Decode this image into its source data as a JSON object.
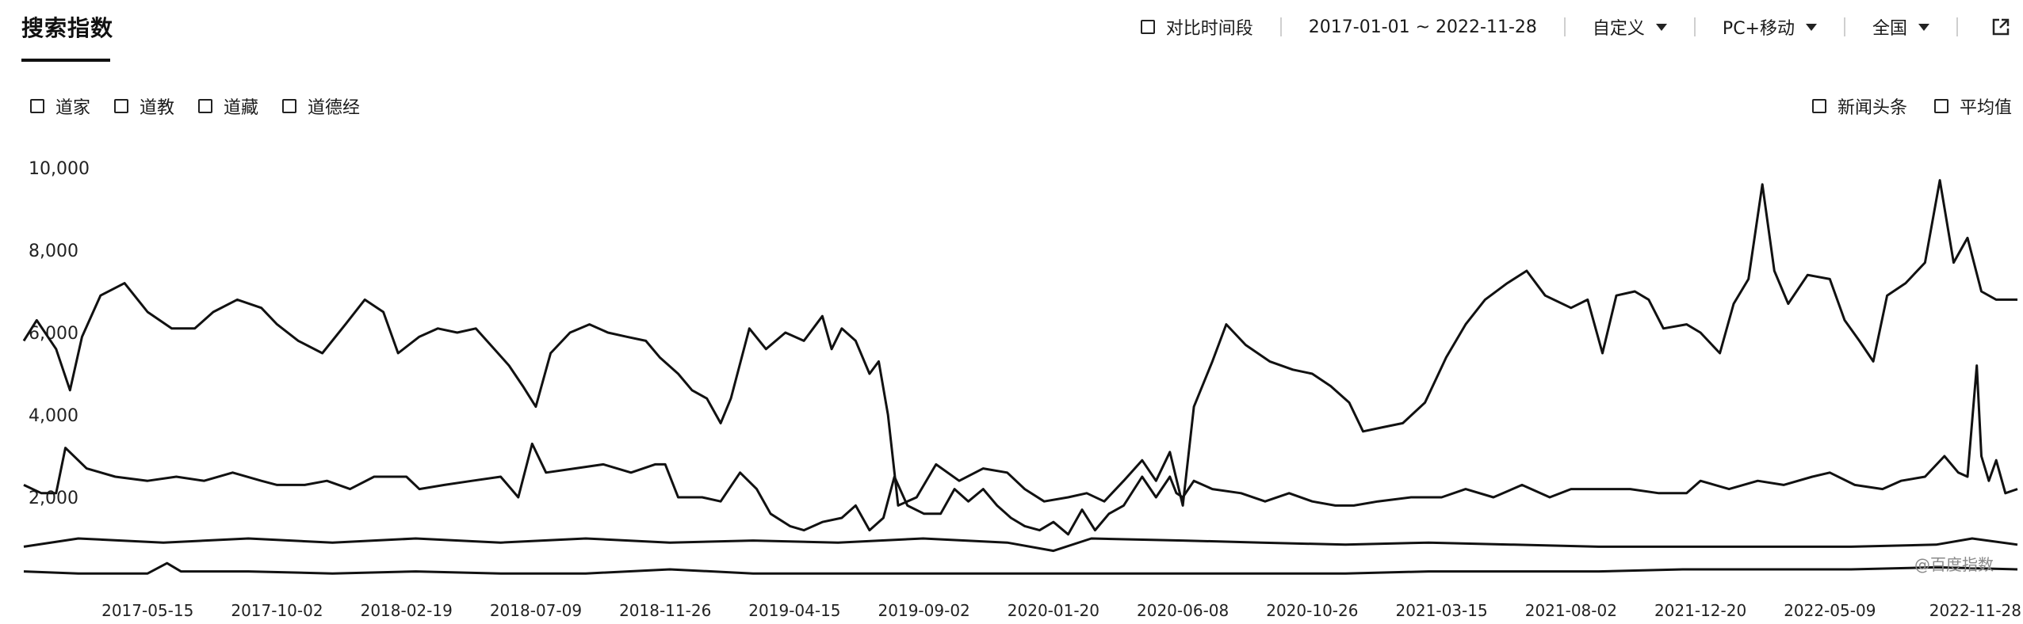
{
  "header": {
    "title": "搜索指数",
    "compare_label": "对比时间段",
    "date_range": "2017-01-01 ~ 2022-11-28",
    "custom_label": "自定义",
    "device_label": "PC+移动",
    "region_label": "全国"
  },
  "legend": {
    "keywords": [
      "道家",
      "道教",
      "道藏",
      "道德经"
    ],
    "news_label": "新闻头条",
    "avg_label": "平均值"
  },
  "watermark": "@百度指数",
  "colors": {
    "line": "#111111",
    "text": "#1a1a1a",
    "separator": "#cfcfcf"
  },
  "icons": {
    "checkbox": "checkbox-icon",
    "dropdown": "chevron-down-icon",
    "export": "export-icon"
  },
  "chart_data": {
    "type": "line",
    "ylim": [
      0,
      10000
    ],
    "yticks": [
      "10,000",
      "8,000",
      "6,000",
      "4,000",
      "2,000"
    ],
    "xlim": [
      "2017-01-01",
      "2022-11-28"
    ],
    "xticks": [
      "2017-05-15",
      "2017-10-02",
      "2018-02-19",
      "2018-07-09",
      "2018-11-26",
      "2019-04-15",
      "2019-09-02",
      "2020-01-20",
      "2020-06-08",
      "2020-10-26",
      "2021-03-15",
      "2021-08-02",
      "2021-12-20",
      "2022-05-09",
      "2022-11-28"
    ],
    "series": [
      {
        "name": "道家",
        "points": [
          [
            "2017-01-01",
            5800
          ],
          [
            "2017-01-15",
            6300
          ],
          [
            "2017-02-05",
            5600
          ],
          [
            "2017-02-20",
            4600
          ],
          [
            "2017-03-05",
            5900
          ],
          [
            "2017-03-25",
            6900
          ],
          [
            "2017-04-20",
            7200
          ],
          [
            "2017-05-15",
            6500
          ],
          [
            "2017-06-10",
            6100
          ],
          [
            "2017-07-05",
            6100
          ],
          [
            "2017-07-25",
            6500
          ],
          [
            "2017-08-20",
            6800
          ],
          [
            "2017-09-15",
            6600
          ],
          [
            "2017-10-02",
            6200
          ],
          [
            "2017-10-25",
            5800
          ],
          [
            "2017-11-20",
            5500
          ],
          [
            "2017-12-15",
            6200
          ],
          [
            "2018-01-05",
            6800
          ],
          [
            "2018-01-25",
            6500
          ],
          [
            "2018-02-10",
            5500
          ],
          [
            "2018-03-05",
            5900
          ],
          [
            "2018-03-25",
            6100
          ],
          [
            "2018-04-15",
            6000
          ],
          [
            "2018-05-05",
            6100
          ],
          [
            "2018-05-25",
            5600
          ],
          [
            "2018-06-10",
            5200
          ],
          [
            "2018-06-25",
            4700
          ],
          [
            "2018-07-09",
            4200
          ],
          [
            "2018-07-25",
            5500
          ],
          [
            "2018-08-15",
            6000
          ],
          [
            "2018-09-05",
            6200
          ],
          [
            "2018-09-25",
            6000
          ],
          [
            "2018-10-15",
            5900
          ],
          [
            "2018-11-05",
            5800
          ],
          [
            "2018-11-20",
            5400
          ],
          [
            "2018-12-10",
            5000
          ],
          [
            "2018-12-25",
            4600
          ],
          [
            "2019-01-10",
            4400
          ],
          [
            "2019-01-25",
            3800
          ],
          [
            "2019-02-05",
            4400
          ],
          [
            "2019-02-25",
            6100
          ],
          [
            "2019-03-15",
            5600
          ],
          [
            "2019-04-05",
            6000
          ],
          [
            "2019-04-25",
            5800
          ],
          [
            "2019-05-15",
            6400
          ],
          [
            "2019-05-25",
            5600
          ],
          [
            "2019-06-05",
            6100
          ],
          [
            "2019-06-20",
            5800
          ],
          [
            "2019-07-05",
            5000
          ],
          [
            "2019-07-15",
            5300
          ],
          [
            "2019-07-25",
            4000
          ],
          [
            "2019-08-05",
            1800
          ],
          [
            "2019-08-25",
            2000
          ],
          [
            "2019-09-15",
            2800
          ],
          [
            "2019-10-10",
            2400
          ],
          [
            "2019-11-05",
            2700
          ],
          [
            "2019-12-01",
            2600
          ],
          [
            "2019-12-20",
            2200
          ],
          [
            "2020-01-10",
            1900
          ],
          [
            "2020-02-05",
            2000
          ],
          [
            "2020-02-25",
            2100
          ],
          [
            "2020-03-15",
            1900
          ],
          [
            "2020-04-05",
            2400
          ],
          [
            "2020-04-25",
            2900
          ],
          [
            "2020-05-10",
            2400
          ],
          [
            "2020-05-25",
            3100
          ],
          [
            "2020-06-08",
            1800
          ],
          [
            "2020-06-20",
            4200
          ],
          [
            "2020-07-10",
            5300
          ],
          [
            "2020-07-25",
            6200
          ],
          [
            "2020-08-15",
            5700
          ],
          [
            "2020-09-10",
            5300
          ],
          [
            "2020-10-05",
            5100
          ],
          [
            "2020-10-26",
            5000
          ],
          [
            "2020-11-15",
            4700
          ],
          [
            "2020-12-05",
            4300
          ],
          [
            "2020-12-20",
            3600
          ],
          [
            "2021-01-10",
            3700
          ],
          [
            "2021-02-01",
            3800
          ],
          [
            "2021-02-25",
            4300
          ],
          [
            "2021-03-20",
            5400
          ],
          [
            "2021-04-10",
            6200
          ],
          [
            "2021-05-01",
            6800
          ],
          [
            "2021-05-25",
            7200
          ],
          [
            "2021-06-15",
            7500
          ],
          [
            "2021-07-05",
            6900
          ],
          [
            "2021-08-02",
            6600
          ],
          [
            "2021-08-20",
            6800
          ],
          [
            "2021-09-05",
            5500
          ],
          [
            "2021-09-20",
            6900
          ],
          [
            "2021-10-10",
            7000
          ],
          [
            "2021-10-25",
            6800
          ],
          [
            "2021-11-10",
            6100
          ],
          [
            "2021-12-05",
            6200
          ],
          [
            "2021-12-20",
            6000
          ],
          [
            "2022-01-10",
            5500
          ],
          [
            "2022-01-25",
            6700
          ],
          [
            "2022-02-10",
            7300
          ],
          [
            "2022-02-25",
            9600
          ],
          [
            "2022-03-10",
            7500
          ],
          [
            "2022-03-25",
            6700
          ],
          [
            "2022-04-15",
            7400
          ],
          [
            "2022-05-09",
            7300
          ],
          [
            "2022-05-25",
            6300
          ],
          [
            "2022-06-10",
            5800
          ],
          [
            "2022-06-25",
            5300
          ],
          [
            "2022-07-10",
            6900
          ],
          [
            "2022-07-30",
            7200
          ],
          [
            "2022-08-20",
            7700
          ],
          [
            "2022-09-05",
            9700
          ],
          [
            "2022-09-20",
            7700
          ],
          [
            "2022-10-05",
            8300
          ],
          [
            "2022-10-20",
            7000
          ],
          [
            "2022-11-05",
            6800
          ],
          [
            "2022-11-28",
            6800
          ]
        ]
      },
      {
        "name": "道教",
        "points": [
          [
            "2017-01-01",
            2300
          ],
          [
            "2017-01-20",
            2100
          ],
          [
            "2017-02-05",
            2100
          ],
          [
            "2017-02-15",
            3200
          ],
          [
            "2017-03-10",
            2700
          ],
          [
            "2017-04-10",
            2500
          ],
          [
            "2017-05-15",
            2400
          ],
          [
            "2017-06-15",
            2500
          ],
          [
            "2017-07-15",
            2400
          ],
          [
            "2017-08-15",
            2600
          ],
          [
            "2017-09-15",
            2400
          ],
          [
            "2017-10-02",
            2300
          ],
          [
            "2017-11-01",
            2300
          ],
          [
            "2017-11-25",
            2400
          ],
          [
            "2017-12-20",
            2200
          ],
          [
            "2018-01-15",
            2500
          ],
          [
            "2018-02-19",
            2500
          ],
          [
            "2018-03-05",
            2200
          ],
          [
            "2018-04-01",
            2300
          ],
          [
            "2018-05-01",
            2400
          ],
          [
            "2018-06-01",
            2500
          ],
          [
            "2018-06-20",
            2000
          ],
          [
            "2018-07-05",
            3300
          ],
          [
            "2018-07-20",
            2600
          ],
          [
            "2018-08-20",
            2700
          ],
          [
            "2018-09-20",
            2800
          ],
          [
            "2018-10-20",
            2600
          ],
          [
            "2018-11-15",
            2800
          ],
          [
            "2018-11-26",
            2800
          ],
          [
            "2018-12-10",
            2000
          ],
          [
            "2019-01-05",
            2000
          ],
          [
            "2019-01-25",
            1900
          ],
          [
            "2019-02-15",
            2600
          ],
          [
            "2019-03-05",
            2200
          ],
          [
            "2019-03-20",
            1600
          ],
          [
            "2019-04-10",
            1300
          ],
          [
            "2019-04-25",
            1200
          ],
          [
            "2019-05-15",
            1400
          ],
          [
            "2019-06-05",
            1500
          ],
          [
            "2019-06-20",
            1800
          ],
          [
            "2019-07-05",
            1200
          ],
          [
            "2019-07-20",
            1500
          ],
          [
            "2019-08-01",
            2500
          ],
          [
            "2019-08-15",
            1800
          ],
          [
            "2019-09-02",
            1600
          ],
          [
            "2019-09-20",
            1600
          ],
          [
            "2019-10-05",
            2200
          ],
          [
            "2019-10-20",
            1900
          ],
          [
            "2019-11-05",
            2200
          ],
          [
            "2019-11-20",
            1800
          ],
          [
            "2019-12-05",
            1500
          ],
          [
            "2019-12-20",
            1300
          ],
          [
            "2020-01-05",
            1200
          ],
          [
            "2020-01-20",
            1400
          ],
          [
            "2020-02-05",
            1100
          ],
          [
            "2020-02-20",
            1700
          ],
          [
            "2020-03-05",
            1200
          ],
          [
            "2020-03-20",
            1600
          ],
          [
            "2020-04-05",
            1800
          ],
          [
            "2020-04-25",
            2500
          ],
          [
            "2020-05-10",
            2000
          ],
          [
            "2020-05-25",
            2500
          ],
          [
            "2020-06-01",
            2100
          ],
          [
            "2020-06-08",
            2000
          ],
          [
            "2020-06-20",
            2400
          ],
          [
            "2020-07-10",
            2200
          ],
          [
            "2020-08-10",
            2100
          ],
          [
            "2020-09-05",
            1900
          ],
          [
            "2020-10-01",
            2100
          ],
          [
            "2020-10-26",
            1900
          ],
          [
            "2020-11-20",
            1800
          ],
          [
            "2020-12-10",
            1800
          ],
          [
            "2021-01-05",
            1900
          ],
          [
            "2021-02-10",
            2000
          ],
          [
            "2021-03-15",
            2000
          ],
          [
            "2021-04-10",
            2200
          ],
          [
            "2021-05-10",
            2000
          ],
          [
            "2021-06-10",
            2300
          ],
          [
            "2021-07-10",
            2000
          ],
          [
            "2021-08-02",
            2200
          ],
          [
            "2021-09-05",
            2200
          ],
          [
            "2021-10-05",
            2200
          ],
          [
            "2021-11-05",
            2100
          ],
          [
            "2021-12-05",
            2100
          ],
          [
            "2021-12-20",
            2400
          ],
          [
            "2022-01-20",
            2200
          ],
          [
            "2022-02-20",
            2400
          ],
          [
            "2022-03-20",
            2300
          ],
          [
            "2022-04-20",
            2500
          ],
          [
            "2022-05-09",
            2600
          ],
          [
            "2022-06-05",
            2300
          ],
          [
            "2022-07-05",
            2200
          ],
          [
            "2022-07-25",
            2400
          ],
          [
            "2022-08-20",
            2500
          ],
          [
            "2022-09-10",
            3000
          ],
          [
            "2022-09-25",
            2600
          ],
          [
            "2022-10-05",
            2500
          ],
          [
            "2022-10-15",
            5200
          ],
          [
            "2022-10-20",
            3000
          ],
          [
            "2022-10-28",
            2400
          ],
          [
            "2022-11-05",
            2900
          ],
          [
            "2022-11-15",
            2100
          ],
          [
            "2022-11-28",
            2200
          ]
        ]
      },
      {
        "name": "道藏",
        "points": [
          [
            "2017-01-01",
            800
          ],
          [
            "2017-03-01",
            1000
          ],
          [
            "2017-06-01",
            900
          ],
          [
            "2017-09-01",
            1000
          ],
          [
            "2017-12-01",
            900
          ],
          [
            "2018-03-01",
            1000
          ],
          [
            "2018-06-01",
            900
          ],
          [
            "2018-09-01",
            1000
          ],
          [
            "2018-12-01",
            900
          ],
          [
            "2019-03-01",
            950
          ],
          [
            "2019-06-01",
            900
          ],
          [
            "2019-09-01",
            1000
          ],
          [
            "2019-12-01",
            900
          ],
          [
            "2020-01-20",
            700
          ],
          [
            "2020-03-01",
            1000
          ],
          [
            "2020-06-08",
            950
          ],
          [
            "2020-09-01",
            900
          ],
          [
            "2020-12-01",
            850
          ],
          [
            "2021-03-01",
            900
          ],
          [
            "2021-06-01",
            850
          ],
          [
            "2021-09-01",
            800
          ],
          [
            "2021-12-01",
            800
          ],
          [
            "2022-03-01",
            800
          ],
          [
            "2022-06-01",
            800
          ],
          [
            "2022-09-01",
            850
          ],
          [
            "2022-10-10",
            1000
          ],
          [
            "2022-11-28",
            850
          ]
        ]
      },
      {
        "name": "道德经",
        "points": [
          [
            "2017-01-01",
            200
          ],
          [
            "2017-03-01",
            150
          ],
          [
            "2017-05-15",
            150
          ],
          [
            "2017-06-05",
            400
          ],
          [
            "2017-06-20",
            200
          ],
          [
            "2017-09-01",
            200
          ],
          [
            "2017-12-01",
            150
          ],
          [
            "2018-03-01",
            200
          ],
          [
            "2018-06-01",
            150
          ],
          [
            "2018-09-01",
            150
          ],
          [
            "2018-12-01",
            250
          ],
          [
            "2019-03-01",
            150
          ],
          [
            "2019-06-01",
            150
          ],
          [
            "2019-09-01",
            150
          ],
          [
            "2019-12-01",
            150
          ],
          [
            "2020-03-01",
            150
          ],
          [
            "2020-06-01",
            150
          ],
          [
            "2020-09-01",
            150
          ],
          [
            "2020-12-01",
            150
          ],
          [
            "2021-03-01",
            200
          ],
          [
            "2021-06-01",
            200
          ],
          [
            "2021-09-01",
            200
          ],
          [
            "2021-12-01",
            250
          ],
          [
            "2022-03-01",
            250
          ],
          [
            "2022-06-01",
            250
          ],
          [
            "2022-09-01",
            300
          ],
          [
            "2022-11-28",
            250
          ]
        ]
      }
    ]
  }
}
